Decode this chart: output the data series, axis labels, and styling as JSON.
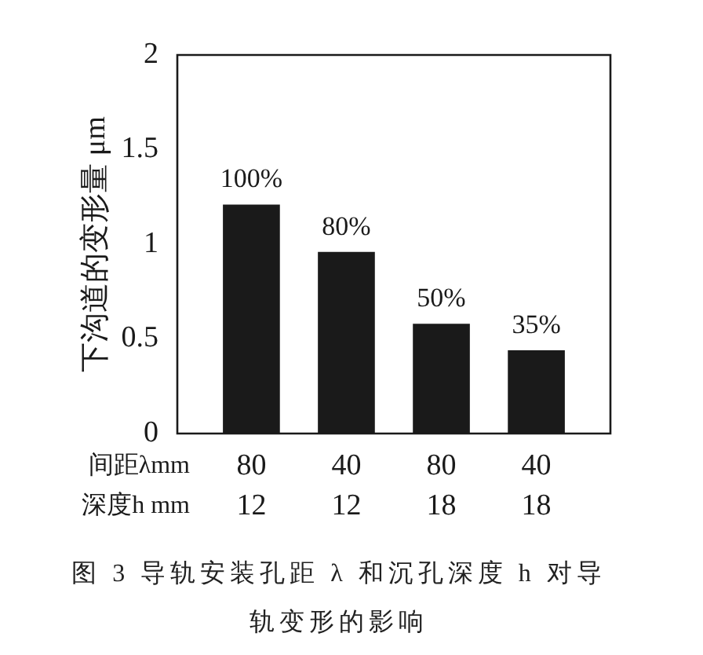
{
  "chart_data": {
    "type": "bar",
    "title": "图 3 导轨安装孔距 λ 和沉孔深度 h 对导轨变形的影响",
    "ylabel": "下沟道的变形量 μm",
    "categories": [
      "80\n12",
      "40\n12",
      "80\n18",
      "40\n18"
    ],
    "values": [
      1.21,
      0.96,
      0.58,
      0.44
    ],
    "color": "#1a1a1a",
    "ylim": [
      0,
      2
    ],
    "yticks": [
      0,
      0.5,
      1,
      1.5,
      2
    ],
    "annotations": [
      "间距λmm",
      "深度h mm",
      {
        "text": "100%",
        "x": "80\n12",
        "y": 1.21
      },
      {
        "text": "80%",
        "x": "40\n12",
        "y": 0.96
      },
      {
        "text": "50%",
        "x": "80\n18",
        "y": 0.58
      },
      {
        "text": "35%",
        "x": "40\n18",
        "y": 0.44
      }
    ]
  }
}
